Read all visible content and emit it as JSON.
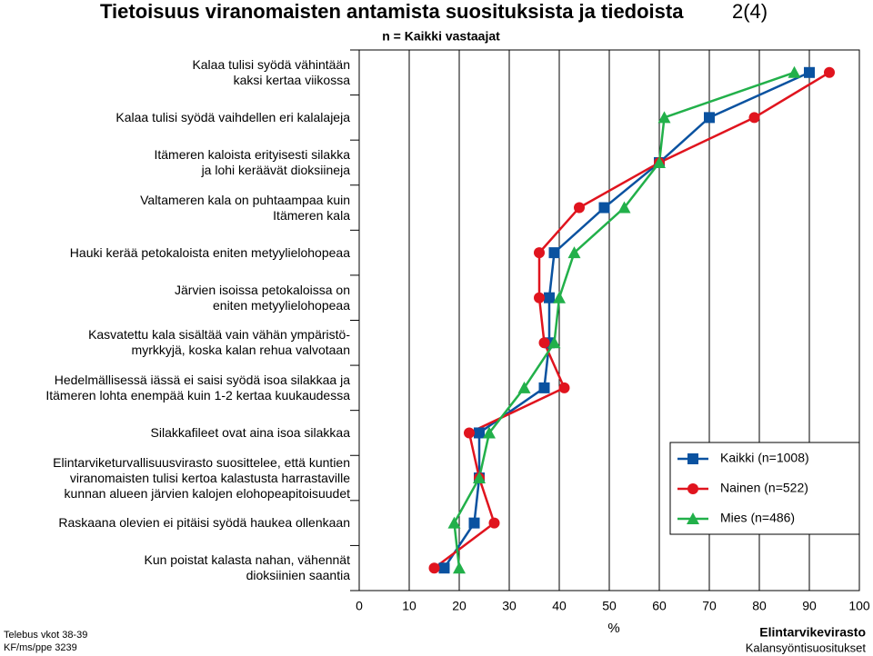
{
  "title": "Tietoisuus viranomaisten antamista suosituksista ja tiedoista",
  "page_number": "2(4)",
  "footer_left": "Telebus vkot 38-39\nKF/ms/ppe 3239",
  "footer_right_title": "Elintarvikevirasto",
  "footer_right_subtitle": "Kalansyöntisuositukset",
  "chart_data": {
    "type": "line",
    "orientation": "horizontal",
    "subtitle": "n = Kaikki vastaajat",
    "x_label": "%",
    "categories": [
      "Kalaa tulisi syödä vähintään\nkaksi kertaa viikossa",
      "Kalaa tulisi syödä vaihdellen eri kalalajeja",
      "Itämeren kaloista erityisesti silakka\nja lohi keräävät dioksiineja",
      "Valtameren kala on puhtaampaa kuin\nItämeren kala",
      "Hauki kerää petokaloista eniten metyylielohopeaa",
      "Järvien isoissa petokaloissa on\neniten metyylielohopeaa",
      "Kasvatettu kala sisältää vain vähän ympäristö-\nmyrkkyjä, koska kalan rehua valvotaan",
      "Hedelmällisessä iässä ei saisi syödä isoa silakkaa ja\nItämeren lohta enempää kuin 1-2 kertaa kuukaudessa",
      "Silakkafileet ovat aina isoa silakkaa",
      "Elintarviketurvallisuusvirasto suosittelee, että kuntien\nviranomaisten tulisi kertoa kalastusta harrastaville\nkunnan alueen järvien kalojen elohopeapitoisuudet",
      "Raskaana olevien ei pitäisi syödä haukea ollenkaan",
      "Kun poistat kalasta nahan, vähennät\ndioksiinien saantia"
    ],
    "series": [
      {
        "name": "Kaikki (n=1008)",
        "color": "#0a52a0",
        "marker": "square",
        "values": [
          90,
          70,
          60,
          49,
          39,
          38,
          38,
          37,
          24,
          24,
          23,
          17
        ]
      },
      {
        "name": "Nainen (n=522)",
        "color": "#e0141e",
        "marker": "circle",
        "values": [
          94,
          79,
          60,
          44,
          36,
          36,
          37,
          41,
          22,
          24,
          27,
          15
        ]
      },
      {
        "name": "Mies (n=486)",
        "color": "#22b04a",
        "marker": "triangle",
        "values": [
          87,
          61,
          60,
          53,
          43,
          40,
          39,
          33,
          26,
          24,
          19,
          20
        ]
      }
    ],
    "xlim": [
      0,
      100
    ],
    "xticks": [
      0,
      10,
      20,
      30,
      40,
      50,
      60,
      70,
      80,
      90,
      100
    ],
    "grid": true,
    "legend_position": "right"
  }
}
